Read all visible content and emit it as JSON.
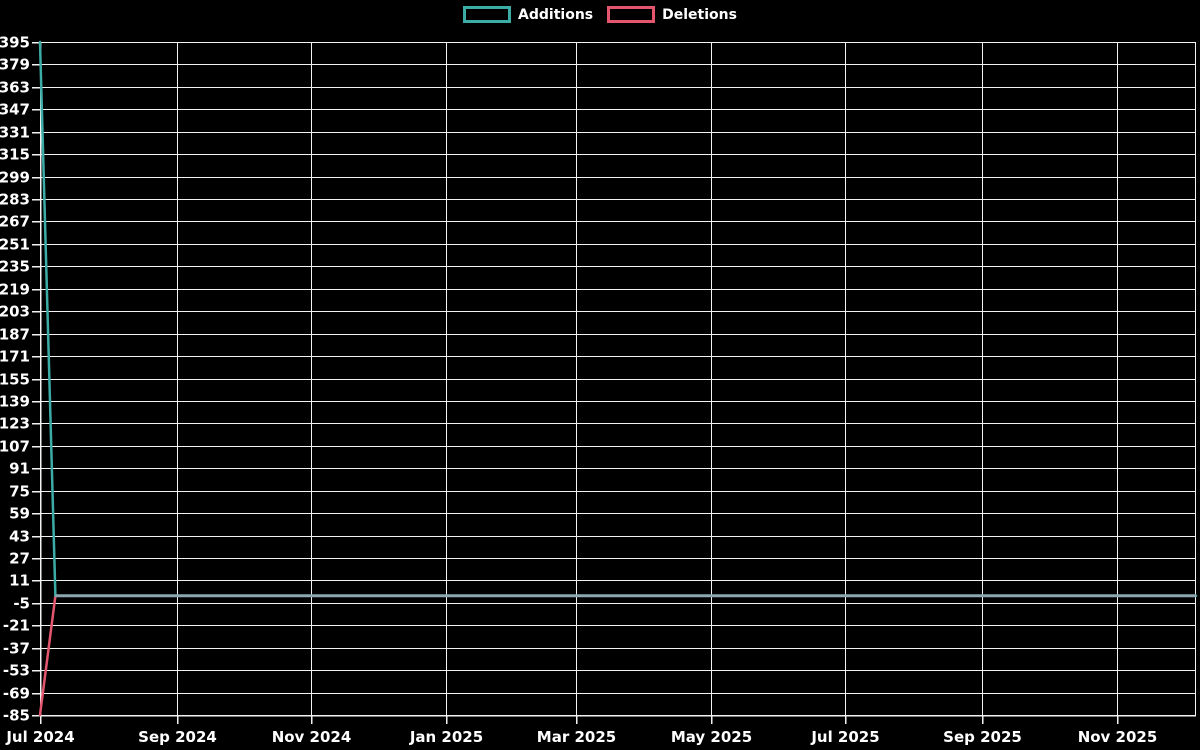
{
  "legend": {
    "items": [
      {
        "label": "Additions",
        "color": "#3caca6"
      },
      {
        "label": "Deletions",
        "color": "#e4566d"
      }
    ]
  },
  "chart_data": {
    "type": "line",
    "title": "",
    "xlabel": "",
    "ylabel": "",
    "background": "#000000",
    "text_color": "#ffffff",
    "grid_color": "#f2f2f2",
    "grid": true,
    "legend_position": "top-center",
    "x_axis": {
      "domain": [
        "2024-07-01",
        "2025-12-07"
      ],
      "tick_dates": [
        "2024-07-01",
        "2024-09-01",
        "2024-11-01",
        "2025-01-01",
        "2025-03-01",
        "2025-05-01",
        "2025-07-01",
        "2025-09-01",
        "2025-11-01"
      ],
      "tick_labels": [
        "Jul 2024",
        "Sep 2024",
        "Nov 2024",
        "Jan 2025",
        "Mar 2025",
        "May 2025",
        "Jul 2025",
        "Sep 2025",
        "Nov 2025"
      ]
    },
    "y_axis": {
      "min": -85,
      "max": 395,
      "step": 16,
      "ticks": [
        395,
        379,
        363,
        347,
        331,
        315,
        299,
        283,
        267,
        251,
        235,
        219,
        203,
        187,
        171,
        155,
        139,
        123,
        107,
        91,
        75,
        59,
        43,
        27,
        11,
        -5,
        -21,
        -37,
        -53,
        -69,
        -85
      ]
    },
    "series": [
      {
        "name": "Additions",
        "color": "#3caca6",
        "points": [
          [
            "2024-07-01",
            395
          ],
          [
            "2024-07-08",
            0
          ],
          [
            "2025-12-07",
            0
          ]
        ]
      },
      {
        "name": "Deletions",
        "color": "#e4566d",
        "points": [
          [
            "2024-07-01",
            -85
          ],
          [
            "2024-07-08",
            0
          ],
          [
            "2025-12-07",
            0
          ]
        ]
      }
    ],
    "overlap_line": {
      "comment_color_where_series_coincide_at_zero": true,
      "color": "#8ea6af",
      "from": "2024-07-08",
      "to": "2025-12-07",
      "y": 0
    }
  }
}
